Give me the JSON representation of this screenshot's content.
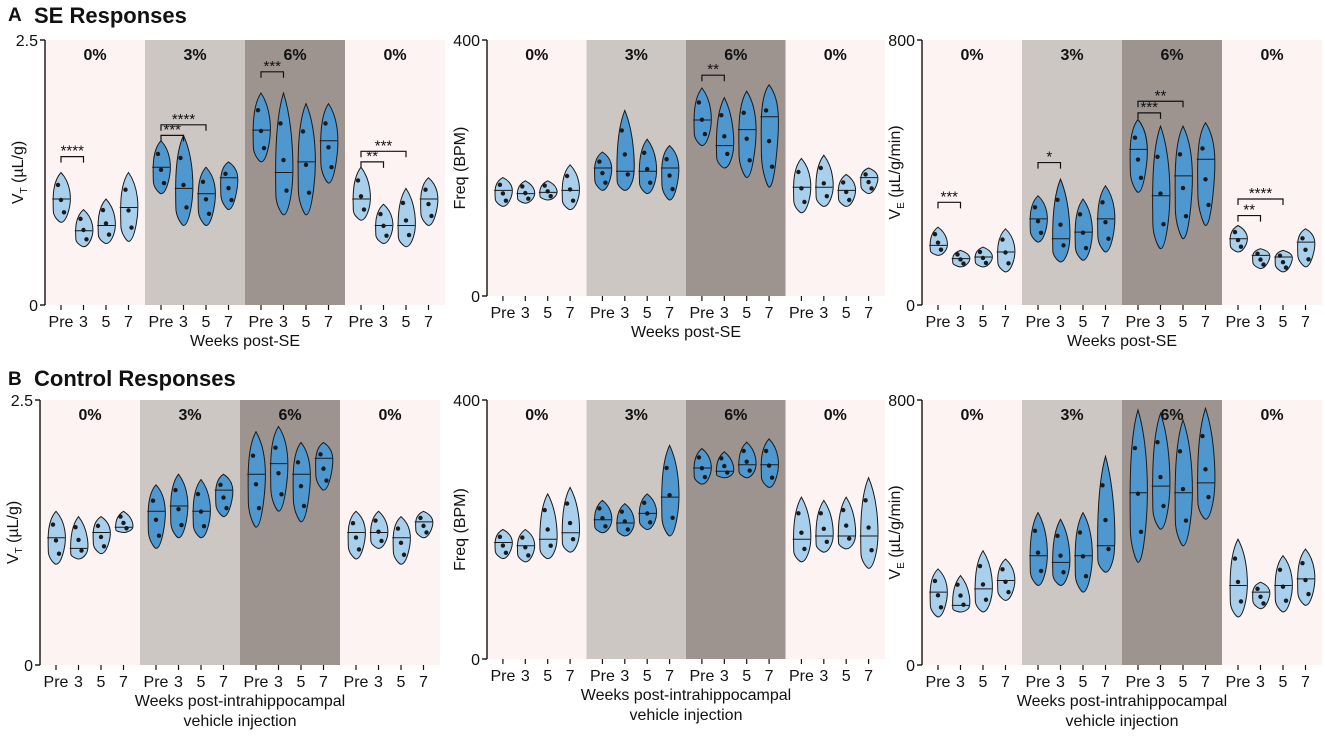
{
  "figure": {
    "panels": [
      {
        "letter": "A",
        "title": "SE Responses"
      },
      {
        "letter": "B",
        "title": "Control Responses"
      }
    ]
  },
  "colors": {
    "bg_0pct": "#fdf3f2",
    "bg_3pct": "#cdc7c4",
    "bg_6pct": "#9d9490",
    "violin_light": "#a8cfec",
    "violin_dark": "#4f97cf",
    "outline": "#1a1a1a"
  },
  "chart_data": [
    {
      "type": "violin",
      "panel": "A",
      "title": "SE Responses",
      "ylabel": "V_T (µL/g)",
      "ylim": [
        0,
        2.5
      ],
      "yticks": [
        "0",
        "2.5"
      ],
      "xlabel": [
        "Weeks post-SE"
      ],
      "groups": [
        {
          "label": "0%",
          "bg": "0pct",
          "ticks": [
            "Pre",
            "3",
            "5",
            "7"
          ],
          "medians": [
            1.0,
            0.7,
            0.75,
            0.92
          ],
          "tops": [
            1.25,
            0.9,
            1.0,
            1.25
          ],
          "bottoms": [
            0.78,
            0.55,
            0.58,
            0.6
          ]
        },
        {
          "label": "3%",
          "bg": "3pct",
          "ticks": [
            "Pre",
            "3",
            "5",
            "7"
          ],
          "medians": [
            1.3,
            1.1,
            1.05,
            1.2
          ],
          "tops": [
            1.55,
            1.6,
            1.3,
            1.35
          ],
          "bottoms": [
            1.05,
            0.75,
            0.75,
            0.9
          ]
        },
        {
          "label": "6%",
          "bg": "6pct",
          "ticks": [
            "Pre",
            "3",
            "5",
            "7"
          ],
          "medians": [
            1.65,
            1.25,
            1.35,
            1.55
          ],
          "tops": [
            2.0,
            2.0,
            1.9,
            1.9
          ],
          "bottoms": [
            1.35,
            0.85,
            0.85,
            1.15
          ]
        },
        {
          "label": "0%",
          "bg": "0pct",
          "ticks": [
            "Pre",
            "3",
            "5",
            "7"
          ],
          "medians": [
            1.0,
            0.75,
            0.75,
            1.0
          ],
          "tops": [
            1.3,
            0.95,
            1.1,
            1.2
          ],
          "bottoms": [
            0.8,
            0.58,
            0.55,
            0.75
          ]
        }
      ],
      "significance": [
        {
          "group": 0,
          "from": 0,
          "to": 1,
          "label": "****",
          "y": 1.4
        },
        {
          "group": 1,
          "from": 0,
          "to": 1,
          "label": "***",
          "y": 1.6
        },
        {
          "group": 1,
          "from": 0,
          "to": 2,
          "label": "****",
          "y": 1.7
        },
        {
          "group": 2,
          "from": 0,
          "to": 1,
          "label": "***",
          "y": 2.2
        },
        {
          "group": 3,
          "from": 0,
          "to": 1,
          "label": "**",
          "y": 1.35
        },
        {
          "group": 3,
          "from": 0,
          "to": 2,
          "label": "***",
          "y": 1.45
        }
      ]
    },
    {
      "type": "violin",
      "panel": "A",
      "ylabel": "Freq (BPM)",
      "ylim": [
        0,
        400
      ],
      "yticks": [
        "0",
        "400"
      ],
      "xlabel": [
        "Weeks post-SE"
      ],
      "groups": [
        {
          "label": "0%",
          "bg": "0pct",
          "ticks": [
            "Pre",
            "3",
            "5",
            "7"
          ],
          "medians": [
            165,
            160,
            162,
            165
          ],
          "tops": [
            185,
            180,
            180,
            205
          ],
          "bottoms": [
            140,
            145,
            150,
            135
          ]
        },
        {
          "label": "3%",
          "bg": "3pct",
          "ticks": [
            "Pre",
            "3",
            "5",
            "7"
          ],
          "medians": [
            200,
            195,
            195,
            200
          ],
          "tops": [
            225,
            290,
            245,
            235
          ],
          "bottoms": [
            165,
            165,
            160,
            150
          ]
        },
        {
          "label": "6%",
          "bg": "6pct",
          "ticks": [
            "Pre",
            "3",
            "5",
            "7"
          ],
          "medians": [
            275,
            235,
            260,
            280
          ],
          "tops": [
            325,
            310,
            320,
            330
          ],
          "bottoms": [
            235,
            200,
            185,
            170
          ]
        },
        {
          "label": "0%",
          "bg": "0pct",
          "ticks": [
            "Pre",
            "3",
            "5",
            "7"
          ],
          "medians": [
            170,
            170,
            165,
            185
          ],
          "tops": [
            215,
            220,
            190,
            200
          ],
          "bottoms": [
            130,
            140,
            140,
            160
          ]
        }
      ],
      "significance": [
        {
          "group": 2,
          "from": 0,
          "to": 1,
          "label": "**",
          "y": 345
        }
      ]
    },
    {
      "type": "violin",
      "panel": "A",
      "ylabel": "V_E (µL/g/min)",
      "ylim": [
        0,
        800
      ],
      "yticks": [
        "0",
        "800"
      ],
      "xlabel": [
        "Weeks post-SE"
      ],
      "groups": [
        {
          "label": "0%",
          "bg": "0pct",
          "ticks": [
            "Pre",
            "3",
            "5",
            "7"
          ],
          "medians": [
            180,
            140,
            145,
            160
          ],
          "tops": [
            235,
            165,
            175,
            230
          ],
          "bottoms": [
            150,
            115,
            115,
            100
          ]
        },
        {
          "label": "3%",
          "bg": "3pct",
          "ticks": [
            "Pre",
            "3",
            "5",
            "7"
          ],
          "medians": [
            260,
            200,
            220,
            260
          ],
          "tops": [
            330,
            380,
            320,
            360
          ],
          "bottoms": [
            190,
            130,
            135,
            160
          ]
        },
        {
          "label": "6%",
          "bg": "6pct",
          "ticks": [
            "Pre",
            "3",
            "5",
            "7"
          ],
          "medians": [
            470,
            330,
            390,
            440
          ],
          "tops": [
            560,
            540,
            540,
            550
          ],
          "bottoms": [
            340,
            170,
            200,
            240
          ]
        },
        {
          "label": "0%",
          "bg": "0pct",
          "ticks": [
            "Pre",
            "3",
            "5",
            "7"
          ],
          "medians": [
            200,
            150,
            145,
            190
          ],
          "tops": [
            240,
            170,
            165,
            230
          ],
          "bottoms": [
            160,
            110,
            100,
            115
          ]
        }
      ],
      "significance": [
        {
          "group": 0,
          "from": 0,
          "to": 1,
          "label": "***",
          "y": 310
        },
        {
          "group": 1,
          "from": 0,
          "to": 1,
          "label": "*",
          "y": 430
        },
        {
          "group": 2,
          "from": 0,
          "to": 1,
          "label": "***",
          "y": 580
        },
        {
          "group": 2,
          "from": 0,
          "to": 2,
          "label": "**",
          "y": 615
        },
        {
          "group": 3,
          "from": 0,
          "to": 1,
          "label": "**",
          "y": 270
        },
        {
          "group": 3,
          "from": 0,
          "to": 2,
          "label": "****",
          "y": 320
        }
      ]
    },
    {
      "type": "violin",
      "panel": "B",
      "title": "Control Responses",
      "ylabel": "V_T (µL/g)",
      "ylim": [
        0,
        2.5
      ],
      "yticks": [
        "0",
        "2.5"
      ],
      "xlabel": [
        "Weeks post-intrahippocampal",
        "vehicle injection"
      ],
      "groups": [
        {
          "label": "0%",
          "bg": "0pct",
          "ticks": [
            "Pre",
            "3",
            "5",
            "7"
          ],
          "medians": [
            1.2,
            1.1,
            1.25,
            1.3
          ],
          "tops": [
            1.45,
            1.4,
            1.4,
            1.45
          ],
          "bottoms": [
            0.95,
            1.0,
            1.05,
            1.25
          ]
        },
        {
          "label": "3%",
          "bg": "3pct",
          "ticks": [
            "Pre",
            "3",
            "5",
            "7"
          ],
          "medians": [
            1.45,
            1.5,
            1.45,
            1.65
          ],
          "tops": [
            1.7,
            1.8,
            1.75,
            1.8
          ],
          "bottoms": [
            1.1,
            1.2,
            1.2,
            1.4
          ]
        },
        {
          "label": "6%",
          "bg": "6pct",
          "ticks": [
            "Pre",
            "3",
            "5",
            "7"
          ],
          "medians": [
            1.8,
            1.9,
            1.8,
            1.95
          ],
          "tops": [
            2.2,
            2.25,
            2.1,
            2.1
          ],
          "bottoms": [
            1.3,
            1.45,
            1.35,
            1.65
          ]
        },
        {
          "label": "0%",
          "bg": "0pct",
          "ticks": [
            "Pre",
            "3",
            "5",
            "7"
          ],
          "medians": [
            1.25,
            1.25,
            1.2,
            1.35
          ],
          "tops": [
            1.45,
            1.45,
            1.4,
            1.45
          ],
          "bottoms": [
            1.0,
            1.1,
            0.95,
            1.2
          ]
        }
      ],
      "significance": []
    },
    {
      "type": "violin",
      "panel": "B",
      "ylabel": "Freq (BPM)",
      "ylim": [
        0,
        400
      ],
      "yticks": [
        "0",
        "400"
      ],
      "xlabel": [
        "Weeks post-intrahippocampal",
        "vehicle injection"
      ],
      "groups": [
        {
          "label": "0%",
          "bg": "0pct",
          "ticks": [
            "Pre",
            "3",
            "5",
            "7"
          ],
          "medians": [
            180,
            175,
            185,
            195
          ],
          "tops": [
            200,
            200,
            255,
            265
          ],
          "bottoms": [
            155,
            150,
            155,
            165
          ]
        },
        {
          "label": "3%",
          "bg": "3pct",
          "ticks": [
            "Pre",
            "3",
            "5",
            "7"
          ],
          "medians": [
            215,
            210,
            225,
            250
          ],
          "tops": [
            245,
            240,
            255,
            330
          ],
          "bottoms": [
            195,
            190,
            200,
            190
          ]
        },
        {
          "label": "6%",
          "bg": "6pct",
          "ticks": [
            "Pre",
            "3",
            "5",
            "7"
          ],
          "medians": [
            295,
            290,
            300,
            300
          ],
          "tops": [
            325,
            320,
            335,
            340
          ],
          "bottoms": [
            270,
            280,
            280,
            265
          ]
        },
        {
          "label": "0%",
          "bg": "0pct",
          "ticks": [
            "Pre",
            "3",
            "5",
            "7"
          ],
          "medians": [
            185,
            190,
            190,
            190
          ],
          "tops": [
            250,
            245,
            250,
            280
          ],
          "bottoms": [
            150,
            165,
            170,
            140
          ]
        }
      ],
      "significance": []
    },
    {
      "type": "violin",
      "panel": "B",
      "ylabel": "V_E (µL/g/min)",
      "ylim": [
        0,
        800
      ],
      "yticks": [
        "0",
        "800"
      ],
      "xlabel": [
        "Weeks post-intrahippocampal",
        "vehicle injection"
      ],
      "groups": [
        {
          "label": "0%",
          "bg": "0pct",
          "ticks": [
            "Pre",
            "3",
            "5",
            "7"
          ],
          "medians": [
            220,
            180,
            230,
            255
          ],
          "tops": [
            290,
            270,
            345,
            320
          ],
          "bottoms": [
            145,
            160,
            160,
            195
          ]
        },
        {
          "label": "3%",
          "bg": "3pct",
          "ticks": [
            "Pre",
            "3",
            "5",
            "7"
          ],
          "medians": [
            330,
            310,
            330,
            360
          ],
          "tops": [
            460,
            440,
            460,
            630
          ],
          "bottoms": [
            240,
            240,
            220,
            280
          ]
        },
        {
          "label": "6%",
          "bg": "6pct",
          "ticks": [
            "Pre",
            "3",
            "5",
            "7"
          ],
          "medians": [
            520,
            540,
            520,
            550
          ],
          "tops": [
            770,
            760,
            740,
            775
          ],
          "bottoms": [
            310,
            410,
            360,
            440
          ]
        },
        {
          "label": "0%",
          "bg": "0pct",
          "ticks": [
            "Pre",
            "3",
            "5",
            "7"
          ],
          "medians": [
            240,
            220,
            240,
            260
          ],
          "tops": [
            380,
            250,
            330,
            350
          ],
          "bottoms": [
            145,
            170,
            160,
            180
          ]
        }
      ],
      "significance": []
    }
  ]
}
